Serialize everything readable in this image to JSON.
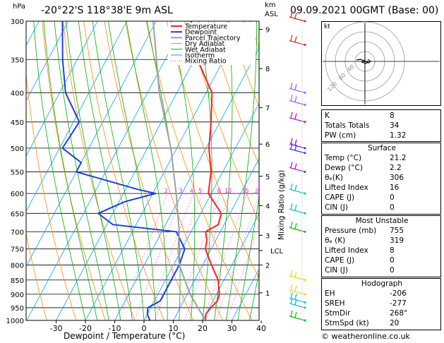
{
  "header": {
    "location": "-20°22'S  118°38'E  9m  ASL",
    "datetime": "09.09.2021  00GMT  (Base: 00)",
    "hpa_label": "hPa",
    "km_label": "km",
    "asl_label": "ASL",
    "copyright": "© weatheronline.co.uk"
  },
  "colors": {
    "temperature": "#ff2020",
    "dewpoint": "#1d3fe0",
    "parcel": "#a0a0a0",
    "dry_adiabat": "#ff8c00",
    "wet_adiabat": "#00b000",
    "isotherm": "#00a0ff",
    "mixing_ratio": "#ff00ff"
  },
  "legend": [
    "Temperature",
    "Dewpoint",
    "Parcel Trajectory",
    "Dry Adiabat",
    "Wet Adiabat",
    "Isotherm",
    "Mixing Ratio"
  ],
  "chart_data": {
    "type": "line",
    "xlabel": "Dewpoint / Temperature (°C)",
    "ylabel": "hPa",
    "xlim": [
      -40,
      40
    ],
    "pressure_range": [
      1000,
      300
    ],
    "x_ticks": [
      -30,
      -20,
      -10,
      0,
      10,
      20,
      30,
      40
    ],
    "pressure_levels": [
      300,
      350,
      400,
      450,
      500,
      550,
      600,
      650,
      700,
      750,
      800,
      850,
      900,
      950,
      1000
    ],
    "km_ticks": [
      {
        "label": "9",
        "p": 310
      },
      {
        "label": "8",
        "p": 363
      },
      {
        "label": "7",
        "p": 425
      },
      {
        "label": "6",
        "p": 492
      },
      {
        "label": "5",
        "p": 560
      },
      {
        "label": "4",
        "p": 630
      },
      {
        "label": "3",
        "p": 710
      },
      {
        "label": "2",
        "p": 800
      },
      {
        "label": "1",
        "p": 895
      }
    ],
    "lcl": {
      "label": "LCL",
      "p": 755
    },
    "mixing_ratio_label": "Mixing Ratio (g/kg)",
    "mixing_ratio_values": [
      "2",
      "3",
      "4",
      "5",
      "8",
      "10",
      "15",
      "20",
      "25"
    ],
    "series": [
      {
        "name": "Temperature",
        "points": [
          [
            1000,
            21
          ],
          [
            975,
            20
          ],
          [
            950,
            20.5
          ],
          [
            925,
            21.5
          ],
          [
            900,
            21
          ],
          [
            850,
            18
          ],
          [
            800,
            13
          ],
          [
            750,
            8
          ],
          [
            725,
            7
          ],
          [
            700,
            5
          ],
          [
            680,
            8
          ],
          [
            650,
            7
          ],
          [
            600,
            -1
          ],
          [
            550,
            -4
          ],
          [
            500,
            -9
          ],
          [
            450,
            -13
          ],
          [
            400,
            -18
          ],
          [
            350,
            -29
          ],
          [
            300,
            -38
          ],
          [
            295,
            -38
          ]
        ]
      },
      {
        "name": "Dewpoint",
        "points": [
          [
            1000,
            2
          ],
          [
            975,
            0
          ],
          [
            950,
            -1
          ],
          [
            925,
            2
          ],
          [
            900,
            2
          ],
          [
            850,
            2
          ],
          [
            800,
            2
          ],
          [
            750,
            1
          ],
          [
            700,
            -5
          ],
          [
            680,
            -28
          ],
          [
            650,
            -35
          ],
          [
            620,
            -28
          ],
          [
            600,
            -19
          ],
          [
            590,
            -26
          ],
          [
            550,
            -50
          ],
          [
            530,
            -50
          ],
          [
            500,
            -59
          ],
          [
            450,
            -58
          ],
          [
            400,
            -68
          ],
          [
            350,
            -75
          ],
          [
            300,
            -82
          ]
        ]
      },
      {
        "name": "Parcel Trajectory",
        "points": [
          [
            1000,
            21
          ],
          [
            900,
            11
          ],
          [
            800,
            2
          ],
          [
            755,
            -1
          ],
          [
            700,
            -4
          ],
          [
            600,
            -12
          ],
          [
            500,
            -22
          ],
          [
            400,
            -36
          ],
          [
            300,
            -51
          ]
        ]
      }
    ]
  },
  "hodograph": {
    "label": "kt",
    "ring_labels": [
      "40",
      "60",
      "120"
    ]
  },
  "indices": {
    "rows": [
      {
        "k": "K",
        "v": "8"
      },
      {
        "k": "Totals Totals",
        "v": "34"
      },
      {
        "k": "PW (cm)",
        "v": "1.32"
      }
    ]
  },
  "surface": {
    "title": "Surface",
    "rows": [
      {
        "k": "Temp (°C)",
        "v": "21.2"
      },
      {
        "k": "Dewp (°C)",
        "v": "2.2"
      },
      {
        "k": "θₑ(K)",
        "v": "306"
      },
      {
        "k": "Lifted Index",
        "v": "16"
      },
      {
        "k": "CAPE (J)",
        "v": "0"
      },
      {
        "k": "CIN (J)",
        "v": "0"
      }
    ]
  },
  "unstable": {
    "title": "Most Unstable",
    "rows": [
      {
        "k": "Pressure (mb)",
        "v": "755"
      },
      {
        "k": "θₑ (K)",
        "v": "319"
      },
      {
        "k": "Lifted Index",
        "v": "8"
      },
      {
        "k": "CAPE (J)",
        "v": "0"
      },
      {
        "k": "CIN (J)",
        "v": "0"
      }
    ]
  },
  "hodo_table": {
    "title": "Hodograph",
    "rows": [
      {
        "k": "EH",
        "v": "-206"
      },
      {
        "k": "SREH",
        "v": "-277"
      },
      {
        "k": "StmDir",
        "v": "268°"
      },
      {
        "k": "StmSpd (kt)",
        "v": "20"
      }
    ]
  }
}
